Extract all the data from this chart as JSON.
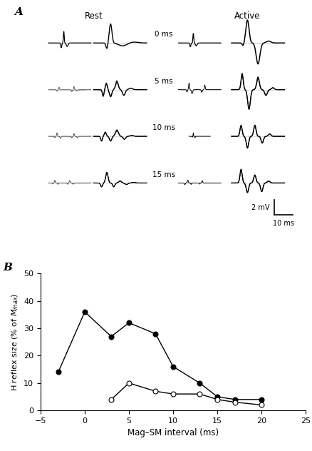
{
  "panel_A_label": "A",
  "panel_B_label": "B",
  "rest_label": "Rest",
  "active_label": "Active",
  "interval_labels": [
    "0 ms",
    "5 ms",
    "10 ms",
    "15 ms"
  ],
  "scalebar_text_v": "2 mV",
  "scalebar_text_h": "10 ms",
  "filled_x": [
    -3,
    0,
    3,
    5,
    8,
    10,
    13,
    15,
    17,
    20
  ],
  "filled_y": [
    14,
    36,
    27,
    32,
    28,
    16,
    10,
    5,
    4,
    4
  ],
  "open_x": [
    3,
    5,
    8,
    10,
    13,
    15,
    17,
    20
  ],
  "open_y": [
    4,
    10,
    7,
    6,
    6,
    4,
    3,
    2
  ],
  "xlabel": "Mag–SM interval (ms)",
  "ylabel": "H reflex size (% of $M_{max}$)",
  "xlim": [
    -5,
    25
  ],
  "ylim": [
    0,
    50
  ],
  "xticks": [
    -5,
    0,
    5,
    10,
    15,
    20,
    25
  ],
  "yticks": [
    0,
    10,
    20,
    30,
    40,
    50
  ],
  "bg_color": "#ffffff",
  "figure_width": 4.38,
  "figure_height": 6.32
}
